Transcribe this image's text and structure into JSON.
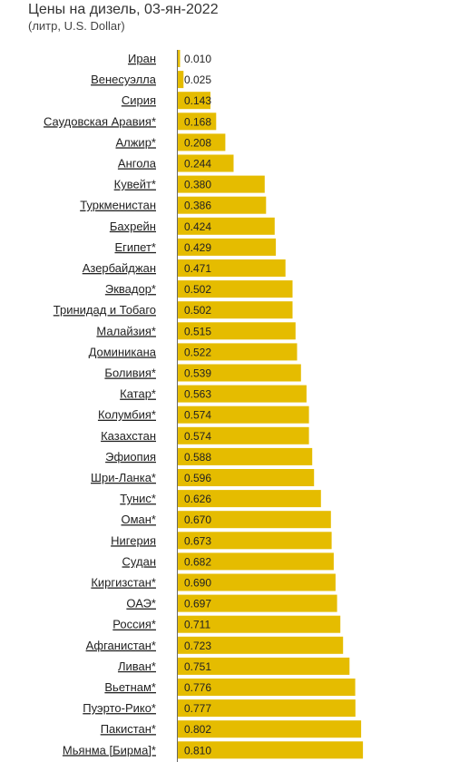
{
  "title": "Цены на дизель, 03-ян-2022",
  "subtitle": "(литр, U.S. Dollar)",
  "colors": {
    "bar": "#e5bc00",
    "axis": "#666666",
    "text": "#222222"
  },
  "chart_data": {
    "type": "bar",
    "orientation": "horizontal",
    "title": "Цены на дизель, 03-ян-2022",
    "subtitle": "(литр, U.S. Dollar)",
    "categories": [
      "Иран",
      "Венесуэлла",
      "Сирия",
      "Саудовская Аравия*",
      "Алжир*",
      "Ангола",
      "Кувейт*",
      "Туркменистан",
      "Бахрейн",
      "Египет*",
      "Азербайджан",
      "Эквадор*",
      "Тринидад и Тобаго",
      "Малайзия*",
      "Доминикана",
      "Боливия*",
      "Катар*",
      "Колумбия*",
      "Казахстан",
      "Эфиопия",
      "Шри-Ланка*",
      "Тунис*",
      "Оман*",
      "Нигерия",
      "Судан",
      "Киргизстан*",
      "ОАЭ*",
      "Россия*",
      "Афганистан*",
      "Ливан*",
      "Вьетнам*",
      "Пуэрто-Рико*",
      "Пакистан*",
      "Мьянма [Бирма]*"
    ],
    "values": [
      0.01,
      0.025,
      0.143,
      0.168,
      0.208,
      0.244,
      0.38,
      0.386,
      0.424,
      0.429,
      0.471,
      0.502,
      0.502,
      0.515,
      0.522,
      0.539,
      0.563,
      0.574,
      0.574,
      0.588,
      0.596,
      0.626,
      0.67,
      0.673,
      0.682,
      0.69,
      0.697,
      0.711,
      0.723,
      0.751,
      0.776,
      0.777,
      0.802,
      0.81
    ],
    "value_labels": [
      "0.010",
      "0.025",
      "0.143",
      "0.168",
      "0.208",
      "0.244",
      "0.380",
      "0.386",
      "0.424",
      "0.429",
      "0.471",
      "0.502",
      "0.502",
      "0.515",
      "0.522",
      "0.539",
      "0.563",
      "0.574",
      "0.574",
      "0.588",
      "0.596",
      "0.626",
      "0.670",
      "0.673",
      "0.682",
      "0.690",
      "0.697",
      "0.711",
      "0.723",
      "0.751",
      "0.776",
      "0.777",
      "0.802",
      "0.810"
    ],
    "xlim": [
      0,
      0.9
    ],
    "grid": false,
    "legend": "none"
  }
}
